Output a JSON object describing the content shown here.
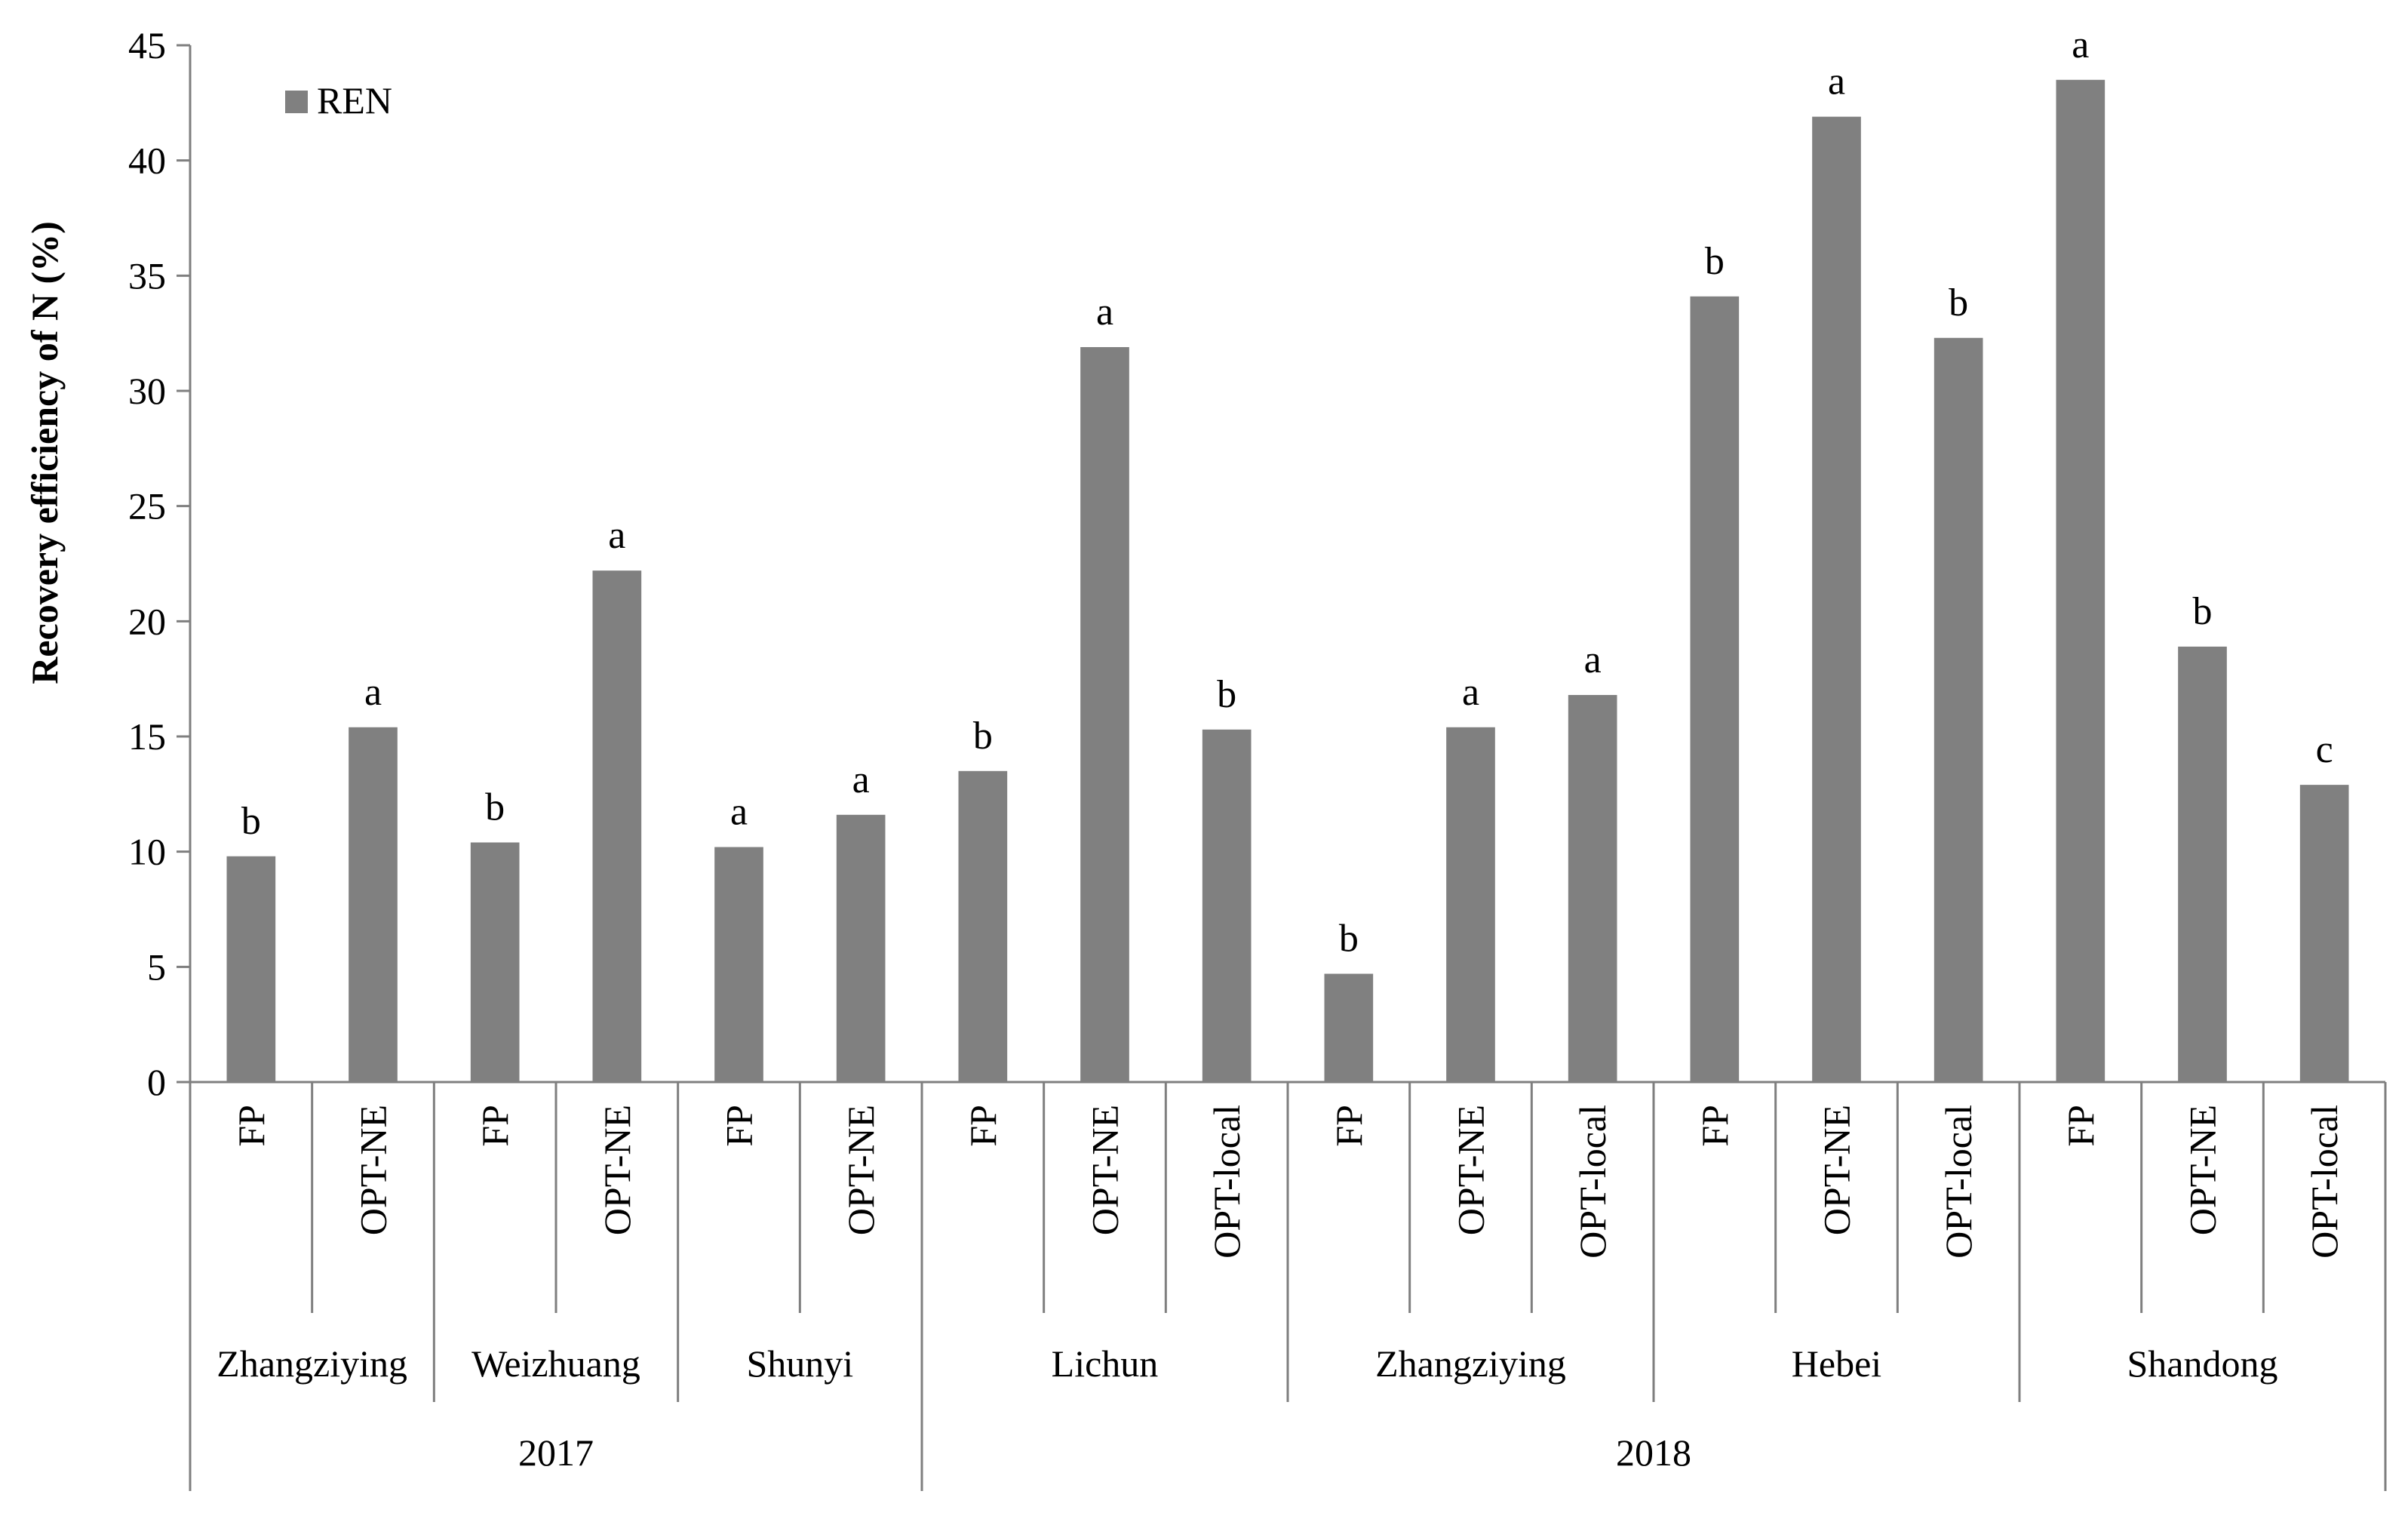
{
  "chart_data": {
    "type": "bar",
    "ylabel": "Recovery efficiency of N (%)",
    "ylim": [
      0,
      45
    ],
    "yticks": [
      0,
      5,
      10,
      15,
      20,
      25,
      30,
      35,
      40,
      45
    ],
    "grid": false,
    "legend": {
      "position": "top-left",
      "entries": [
        "REN"
      ]
    },
    "bar_color": "#808080",
    "categories": [
      "FP",
      "OPT-NE",
      "FP",
      "OPT-NE",
      "FP",
      "OPT-NE",
      "FP",
      "OPT-NE",
      "OPT-local",
      "FP",
      "OPT-NE",
      "OPT-local",
      "FP",
      "OPT-NE",
      "OPT-local",
      "FP",
      "OPT-NE",
      "OPT-local"
    ],
    "series": [
      {
        "name": "REN",
        "values": [
          9.8,
          15.4,
          10.4,
          22.2,
          10.2,
          11.6,
          13.5,
          31.9,
          15.3,
          4.7,
          15.4,
          16.8,
          34.1,
          41.9,
          32.3,
          43.5,
          18.9,
          12.9
        ],
        "labels": [
          "b",
          "a",
          "b",
          "a",
          "a",
          "a",
          "b",
          "a",
          "b",
          "b",
          "a",
          "a",
          "b",
          "a",
          "b",
          "a",
          "b",
          "c"
        ]
      }
    ],
    "sites": [
      {
        "name": "Zhangziying",
        "count": 2
      },
      {
        "name": "Weizhuang",
        "count": 2
      },
      {
        "name": "Shunyi",
        "count": 2
      },
      {
        "name": "Lichun",
        "count": 3
      },
      {
        "name": "Zhangziying",
        "count": 3
      },
      {
        "name": "Hebei",
        "count": 3
      },
      {
        "name": "Shandong",
        "count": 3
      }
    ],
    "years": [
      {
        "name": "2017",
        "count": 6
      },
      {
        "name": "2018",
        "count": 12
      }
    ]
  }
}
